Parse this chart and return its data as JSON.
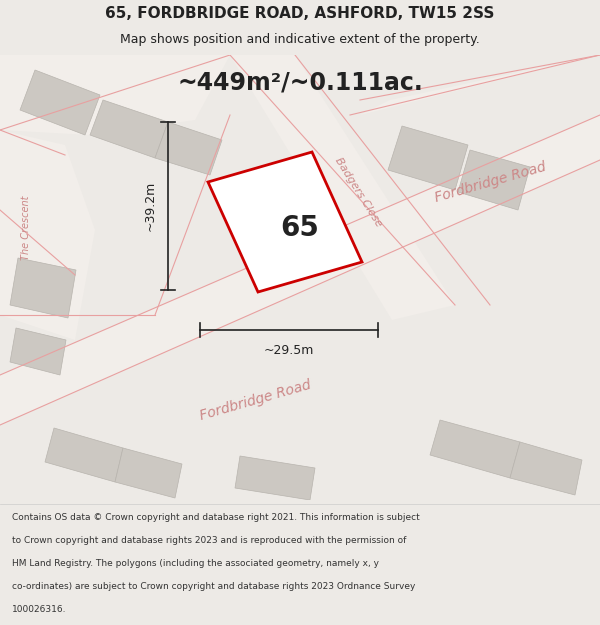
{
  "title_line1": "65, FORDBRIDGE ROAD, ASHFORD, TW15 2SS",
  "title_line2": "Map shows position and indicative extent of the property.",
  "area_text": "~449m²/~0.111ac.",
  "label_65": "65",
  "label_road1": "Fordbridge Road",
  "label_road2": "Fordbridge Road",
  "label_close": "Badgers Close",
  "label_crescent": "The Crescent",
  "dim_width": "~29.5m",
  "dim_height": "~39.2m",
  "footer_lines": [
    "Contains OS data © Crown copyright and database right 2021. This information is subject",
    "to Crown copyright and database rights 2023 and is reproduced with the permission of",
    "HM Land Registry. The polygons (including the associated geometry, namely x, y",
    "co-ordinates) are subject to Crown copyright and database rights 2023 Ordnance Survey",
    "100026316."
  ],
  "bg_color": "#edeae6",
  "map_bg": "#e5e0db",
  "road_fill": "#f2eeea",
  "building_fill": "#ccc8c2",
  "building_stroke": "#b8b4ae",
  "property_fill": "#ffffff",
  "property_stroke": "#cc0000",
  "dim_line_color": "#222222",
  "road_label_color": "#cc8888",
  "footer_bg": "#ffffff",
  "title_color": "#222222",
  "area_color": "#222222",
  "road_line_color": "#e8a0a0"
}
